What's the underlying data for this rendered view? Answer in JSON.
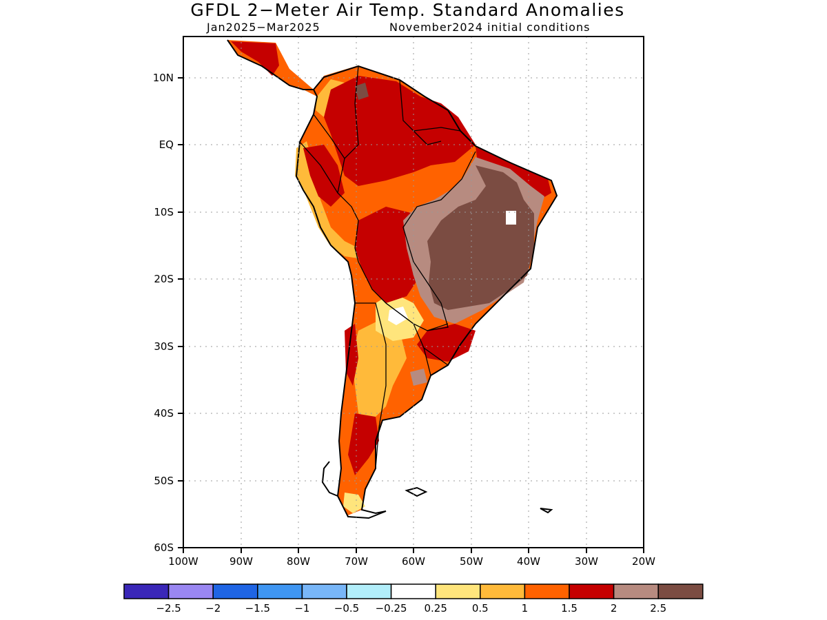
{
  "title": "GFDL 2−Meter Air Temp. Standard Anomalies",
  "subtitle_left": "Jan2025−Mar2025",
  "subtitle_right": "November2024 initial conditions",
  "map": {
    "lon_ticks": [
      "100W",
      "90W",
      "80W",
      "70W",
      "60W",
      "50W",
      "40W",
      "30W",
      "20W"
    ],
    "lat_ticks": [
      "10N",
      "EQ",
      "10S",
      "20S",
      "30S",
      "40S",
      "50S",
      "60S"
    ],
    "lon_range": [
      -100,
      -20
    ],
    "lat_range": [
      -60,
      16
    ],
    "grid": "dotted",
    "region": "South America"
  },
  "colorbar": {
    "labels": [
      "−2.5",
      "−2",
      "−1.5",
      "−1",
      "−0.5",
      "−0.25",
      "0.25",
      "0.5",
      "1",
      "1.5",
      "2",
      "2.5"
    ],
    "colors": [
      "#3a27b8",
      "#9a87f2",
      "#1f65e4",
      "#3f96f2",
      "#78b6f8",
      "#b2eefa",
      "#ffffff",
      "#ffe57c",
      "#ffba3a",
      "#ff6200",
      "#c50000",
      "#b78b80",
      "#7b4c42"
    ]
  }
}
